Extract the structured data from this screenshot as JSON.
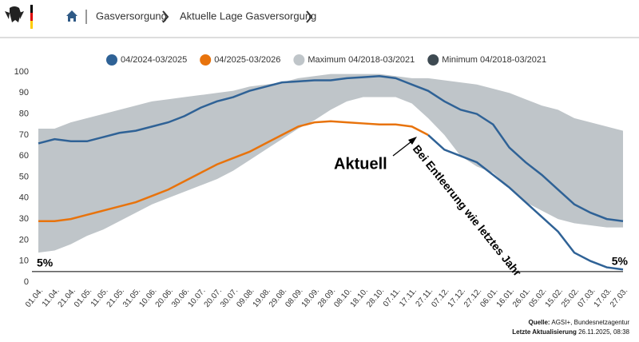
{
  "header": {
    "breadcrumbs": [
      "Gasversorgung",
      "Aktuelle Lage Gasversorgung"
    ]
  },
  "chart_data": {
    "type": "line",
    "categories": [
      "01.04.",
      "11.04.",
      "21.04.",
      "01.05.",
      "11.05.",
      "21.05.",
      "31.05.",
      "10.06.",
      "20.06.",
      "30.06.",
      "10.07.",
      "20.07.",
      "30.07.",
      "09.08.",
      "19.08.",
      "29.08.",
      "08.09.",
      "18.09.",
      "28.09.",
      "08.10.",
      "18.10.",
      "28.10.",
      "07.11.",
      "17.11.",
      "27.11.",
      "07.12.",
      "17.12.",
      "27.12.",
      "06.01.",
      "16.01.",
      "26.01.",
      "05.02.",
      "15.02.",
      "25.02.",
      "07.03.",
      "17.03.",
      "27.03."
    ],
    "series": [
      {
        "name": "04/2024-03/2025",
        "color": "#2f6296",
        "values": [
          66,
          68,
          67,
          67,
          69,
          71,
          72,
          74,
          76,
          79,
          83,
          86,
          88,
          91,
          93,
          95,
          95.5,
          96,
          96,
          97,
          97.5,
          98,
          97,
          94,
          91,
          86,
          82,
          80,
          75,
          64,
          57,
          51,
          44,
          37,
          33,
          30,
          29
        ]
      },
      {
        "name": "04/2025-03/2026",
        "color": "#e8730c",
        "values": [
          29,
          29,
          30,
          32,
          34,
          36,
          38,
          41,
          44,
          48,
          52,
          56,
          59,
          62,
          66,
          70,
          74,
          76,
          76.5,
          76,
          75.5,
          75,
          75,
          74,
          70,
          null,
          null,
          null,
          null,
          null,
          null,
          null,
          null,
          null,
          null,
          null,
          null
        ]
      },
      {
        "name": "Maximum 04/2018-03/2021",
        "color": "#bfc5c9",
        "values": [
          73,
          73,
          76,
          78,
          80,
          82,
          84,
          86,
          87,
          88,
          89,
          90,
          91,
          93,
          94,
          95,
          97,
          98,
          99,
          99,
          99,
          99,
          98,
          97,
          97,
          96,
          95,
          94,
          92,
          90,
          87,
          84,
          82,
          78,
          76,
          74,
          72
        ]
      },
      {
        "name": "Minimum 04/2018-03/2021",
        "color": "#3e4a52",
        "values": [
          14,
          15,
          18,
          22,
          25,
          29,
          33,
          37,
          40,
          43,
          46,
          49,
          53,
          58,
          63,
          68,
          73,
          77,
          82,
          86,
          88,
          88,
          88,
          85,
          78,
          70,
          60,
          55,
          52,
          45,
          38,
          34,
          30,
          28,
          27,
          26,
          26
        ]
      }
    ],
    "projection": {
      "label": "Bei Entleerung wie letztes Jahr",
      "color": "#2f6296",
      "values": [
        null,
        null,
        null,
        null,
        null,
        null,
        null,
        null,
        null,
        null,
        null,
        null,
        null,
        null,
        null,
        null,
        null,
        null,
        null,
        null,
        null,
        null,
        null,
        null,
        70,
        63,
        60,
        57,
        51,
        45,
        38,
        31,
        24,
        14,
        10,
        7,
        6
      ]
    },
    "reference": {
      "value": 5,
      "label": "5%"
    },
    "annotation": "Aktuell",
    "ylim": [
      0,
      100
    ],
    "yticks": [
      0,
      10,
      20,
      30,
      40,
      50,
      60,
      70,
      80,
      90,
      100
    ],
    "source_label": "Quelle:",
    "source": "AGSI+, Bundesnetzagentur",
    "updated_label": "Letzte Aktualisierung",
    "updated": "26.11.2025, 08:38"
  }
}
